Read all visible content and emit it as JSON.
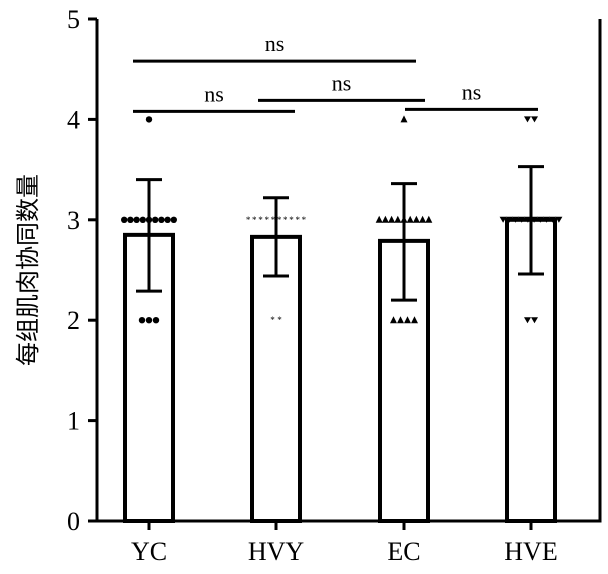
{
  "chart_data": {
    "type": "bar",
    "title": "",
    "xlabel": "",
    "ylabel": "每组肌肉协同数量",
    "ylim": [
      0,
      5
    ],
    "yticks": [
      0,
      1,
      2,
      3,
      4,
      5
    ],
    "categories": [
      "YC",
      "HVY",
      "EC",
      "HVE"
    ],
    "values": [
      2.85,
      2.83,
      2.79,
      3.0
    ],
    "error_low": [
      2.29,
      2.44,
      2.2,
      2.46
    ],
    "error_high": [
      3.4,
      3.22,
      3.36,
      3.53
    ],
    "points": [
      {
        "marker": "circle",
        "values": {
          "4": 1,
          "3": 9,
          "2": 3
        }
      },
      {
        "marker": "star",
        "values": {
          "3": 10,
          "2": 2
        }
      },
      {
        "marker": "triangle",
        "values": {
          "4": 1,
          "3": 9,
          "2": 4
        }
      },
      {
        "marker": "triangle-down",
        "values": {
          "4": 2,
          "3": 10,
          "2": 2
        }
      }
    ],
    "comparisons": [
      {
        "from": "YC",
        "to": "EC",
        "label": "ns",
        "y": 4.58
      },
      {
        "from": "YC",
        "to": "HVY",
        "label": "ns",
        "y": 4.08
      },
      {
        "from": "HVY",
        "to": "EC",
        "label": "ns",
        "y": 4.19
      },
      {
        "from": "EC",
        "to": "HVE",
        "label": "ns",
        "y": 4.1
      }
    ],
    "grid": false
  }
}
